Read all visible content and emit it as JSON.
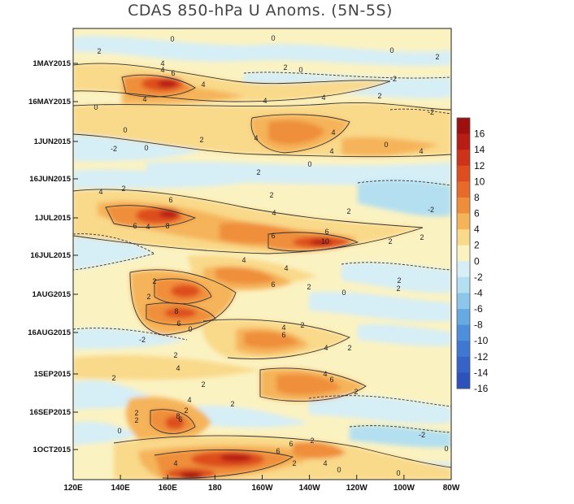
{
  "chart_data": {
    "type": "heatmap",
    "title": "CDAS 850-hPa U Anoms. (5N-5S)",
    "xlabel": "",
    "ylabel": "",
    "x_ticks": [
      "120E",
      "140E",
      "160E",
      "180",
      "160W",
      "140W",
      "120W",
      "100W",
      "80W"
    ],
    "y_ticks": [
      "1MAY2015",
      "16MAY2015",
      "1JUN2015",
      "16JUN2015",
      "1JUL2015",
      "16JUL2015",
      "1AUG2015",
      "16AUG2015",
      "1SEP2015",
      "16SEP2015",
      "1OCT2015"
    ],
    "colorbar": {
      "levels": [
        16,
        14,
        12,
        10,
        8,
        6,
        4,
        2,
        0,
        -2,
        -4,
        -6,
        -8,
        -10,
        -12,
        -14,
        -16
      ],
      "colors": [
        "#9e0f0f",
        "#b81d14",
        "#cc3318",
        "#de4d1e",
        "#e86a2a",
        "#ef8e3a",
        "#f5b45a",
        "#f9d98a",
        "#fbf2c2",
        "#d6eef6",
        "#b3dff0",
        "#8cc6ea",
        "#66aae1",
        "#4d8fda",
        "#3f78d3",
        "#3563c8",
        "#2d52bb"
      ]
    },
    "anomaly_cells": [
      {
        "lon": "165E",
        "date": "13MAY2015",
        "value": 8
      },
      {
        "lon": "150W",
        "date": "29MAY2015",
        "value": 6
      },
      {
        "lon": "160E",
        "date": "4JUL2015",
        "value": 8
      },
      {
        "lon": "135W",
        "date": "12JUL2015",
        "value": 10
      },
      {
        "lon": "165W",
        "date": "5AUG2015",
        "value": 6
      },
      {
        "lon": "165E",
        "date": "28JUL2015",
        "value": 8
      },
      {
        "lon": "165E",
        "date": "13AUG2015",
        "value": 8
      },
      {
        "lon": "150W",
        "date": "22AUG2015",
        "value": 6
      },
      {
        "lon": "135W",
        "date": "7SEP2015",
        "value": 6
      },
      {
        "lon": "165E",
        "date": "26SEP2015",
        "value": 8
      },
      {
        "lon": "170W",
        "date": "9OCT2015",
        "value": 12
      },
      {
        "lon": "170E",
        "date": "14OCT2015",
        "value": 14
      }
    ],
    "contour_labels": [
      "0",
      "2",
      "4",
      "6",
      "8",
      "10",
      "-2"
    ],
    "legend_position": "right"
  }
}
